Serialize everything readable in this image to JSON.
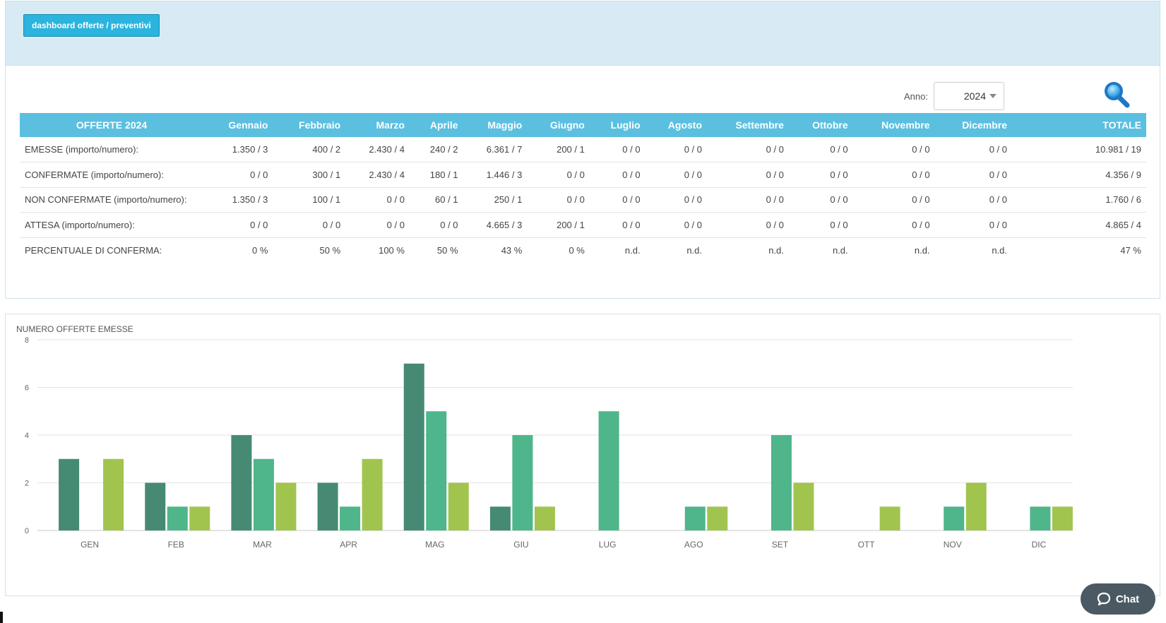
{
  "header": {
    "dashboard_button": "dashboard offerte / preventivi"
  },
  "filter": {
    "anno_label": "Anno:",
    "anno_value": "2024",
    "search_icon": "magnifier-icon"
  },
  "table": {
    "headers": [
      "OFFERTE 2024",
      "Gennaio",
      "Febbraio",
      "Marzo",
      "Aprile",
      "Maggio",
      "Giugno",
      "Luglio",
      "Agosto",
      "Settembre",
      "Ottobre",
      "Novembre",
      "Dicembre",
      "TOTALE"
    ],
    "rows": [
      [
        "EMESSE (importo/numero):",
        "1.350 / 3",
        "400 / 2",
        "2.430 / 4",
        "240 / 2",
        "6.361 / 7",
        "200 / 1",
        "0 / 0",
        "0 / 0",
        "0 / 0",
        "0 / 0",
        "0 / 0",
        "0 / 0",
        "10.981 / 19"
      ],
      [
        "CONFERMATE (importo/numero):",
        "0 / 0",
        "300 / 1",
        "2.430 / 4",
        "180 / 1",
        "1.446 / 3",
        "0 / 0",
        "0 / 0",
        "0 / 0",
        "0 / 0",
        "0 / 0",
        "0 / 0",
        "0 / 0",
        "4.356 / 9"
      ],
      [
        "NON CONFERMATE (importo/numero):",
        "1.350 / 3",
        "100 / 1",
        "0 / 0",
        "60 / 1",
        "250 / 1",
        "0 / 0",
        "0 / 0",
        "0 / 0",
        "0 / 0",
        "0 / 0",
        "0 / 0",
        "0 / 0",
        "1.760 / 6"
      ],
      [
        "ATTESA (importo/numero):",
        "0 / 0",
        "0 / 0",
        "0 / 0",
        "0 / 0",
        "4.665 / 3",
        "200 / 1",
        "0 / 0",
        "0 / 0",
        "0 / 0",
        "0 / 0",
        "0 / 0",
        "0 / 0",
        "4.865 / 4"
      ],
      [
        "PERCENTUALE DI CONFERMA:",
        "0 %",
        "50 %",
        "100 %",
        "50 %",
        "43 %",
        "0 %",
        "n.d.",
        "n.d.",
        "n.d.",
        "n.d.",
        "n.d.",
        "n.d.",
        "47 %"
      ]
    ]
  },
  "chart_data": {
    "type": "bar",
    "title": "NUMERO OFFERTE EMESSE",
    "categories": [
      "GEN",
      "FEB",
      "MAR",
      "APR",
      "MAG",
      "GIU",
      "LUG",
      "AGO",
      "SET",
      "OTT",
      "NOV",
      "DIC"
    ],
    "series": [
      {
        "values": [
          3,
          2,
          4,
          2,
          7,
          1,
          0,
          0,
          0,
          0,
          0,
          0
        ],
        "color": "#468a73"
      },
      {
        "values": [
          0,
          1,
          3,
          1,
          5,
          4,
          5,
          1,
          4,
          0,
          1,
          1
        ],
        "color": "#4fb58a"
      },
      {
        "values": [
          3,
          1,
          2,
          3,
          2,
          1,
          0,
          1,
          2,
          1,
          2,
          1
        ],
        "color": "#a1c44f"
      }
    ],
    "yticks": [
      0,
      2,
      4,
      6,
      8
    ],
    "ylim": [
      0,
      8
    ],
    "grid": true
  },
  "chat": {
    "label": "Chat",
    "icon": "chat-bubble-icon"
  }
}
